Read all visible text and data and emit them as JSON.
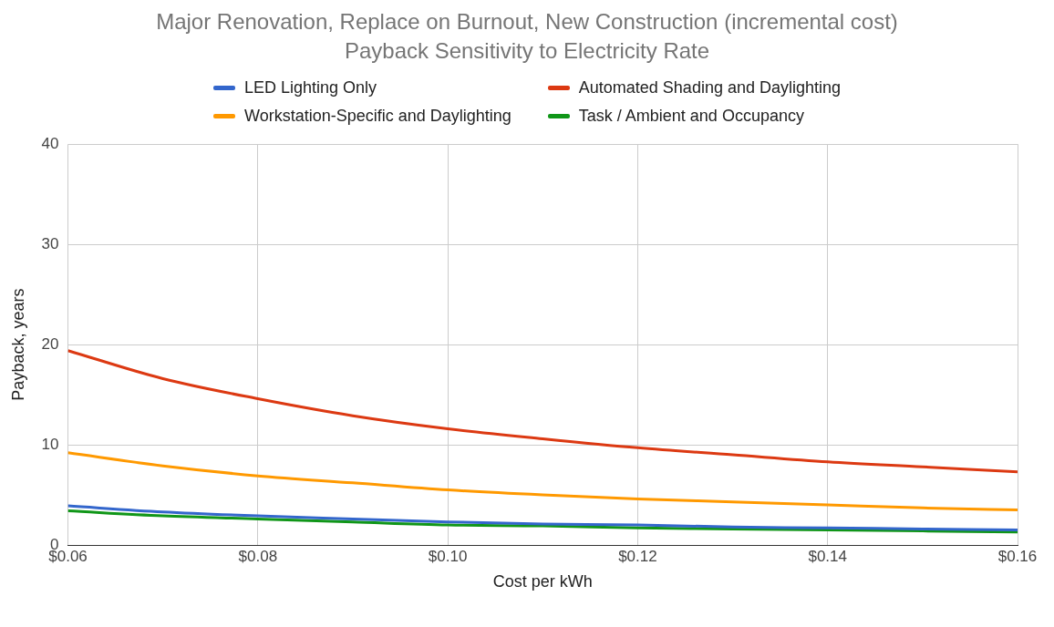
{
  "chart_data": {
    "type": "line",
    "title": "Major Renovation, Replace on Burnout, New Construction (incremental cost)",
    "subtitle": "Payback Sensitivity to Electricity Rate",
    "xlabel": "Cost per kWh",
    "ylabel": "Payback, years",
    "x": [
      0.06,
      0.07,
      0.08,
      0.09,
      0.1,
      0.11,
      0.12,
      0.13,
      0.14,
      0.15,
      0.16
    ],
    "series": [
      {
        "name": "LED Lighting Only",
        "color": "#3366cc",
        "values": [
          3.9,
          3.3,
          2.9,
          2.6,
          2.3,
          2.1,
          2.0,
          1.8,
          1.7,
          1.6,
          1.5
        ]
      },
      {
        "name": "Automated Shading and Daylighting",
        "color": "#dc3912",
        "values": [
          19.4,
          16.6,
          14.6,
          12.9,
          11.6,
          10.6,
          9.7,
          9.0,
          8.3,
          7.8,
          7.3
        ]
      },
      {
        "name": "Workstation-Specific and Daylighting",
        "color": "#ff9900",
        "values": [
          9.2,
          7.9,
          6.9,
          6.2,
          5.5,
          5.0,
          4.6,
          4.3,
          4.0,
          3.7,
          3.5
        ]
      },
      {
        "name": "Task / Ambient and Occupancy",
        "color": "#109618",
        "values": [
          3.4,
          2.9,
          2.6,
          2.3,
          2.0,
          1.9,
          1.7,
          1.6,
          1.5,
          1.4,
          1.3
        ]
      }
    ],
    "xlim": [
      0.06,
      0.16
    ],
    "xticks": [
      {
        "value": 0.06,
        "label": "$0.06"
      },
      {
        "value": 0.08,
        "label": "$0.08"
      },
      {
        "value": 0.1,
        "label": "$0.10"
      },
      {
        "value": 0.12,
        "label": "$0.12"
      },
      {
        "value": 0.14,
        "label": "$0.14"
      },
      {
        "value": 0.16,
        "label": "$0.16"
      }
    ],
    "ylim": [
      0,
      40
    ],
    "yticks": [
      0,
      10,
      20,
      30,
      40
    ],
    "grid": true,
    "legend": "top",
    "marker": "none",
    "line_style": "solid"
  }
}
